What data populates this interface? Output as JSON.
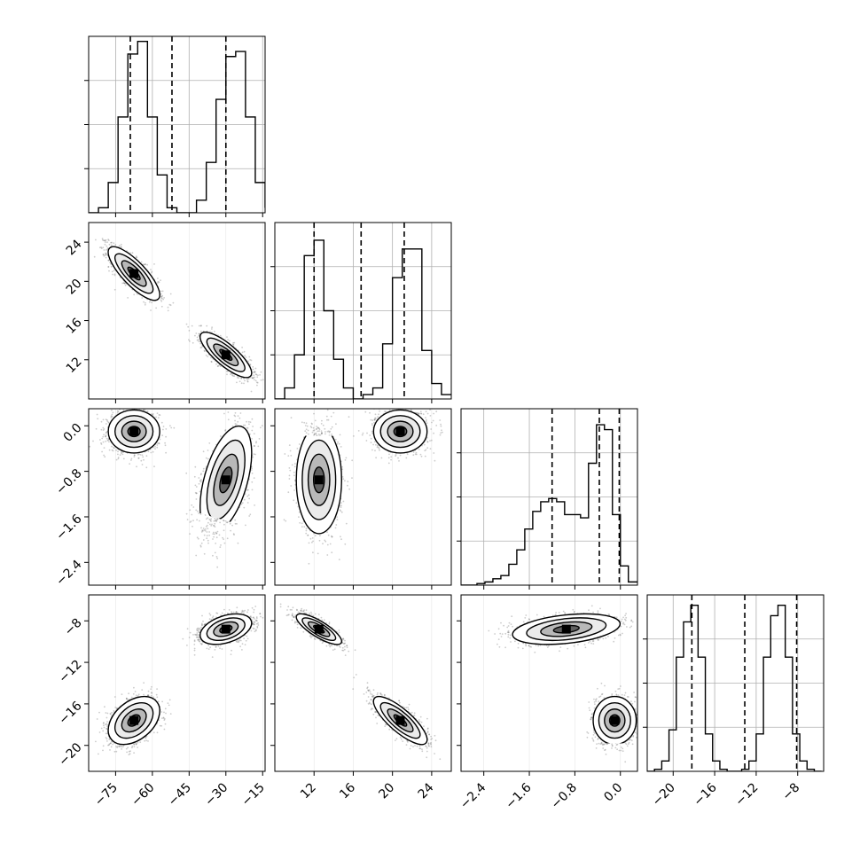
{
  "chart_data": {
    "type": "scatter",
    "layout": "corner-plot",
    "grid": true,
    "parameters": [
      {
        "range": [
          -86,
          -14
        ],
        "ticks": [
          -75,
          -60,
          -45,
          -30,
          -15
        ],
        "tick_labels": [
          "−75",
          "−60",
          "−45",
          "−30",
          "−15"
        ],
        "quantiles": [
          -69,
          -52,
          -30
        ],
        "histogram": {
          "bin_edges": [
            -86,
            -82,
            -78,
            -74,
            -70,
            -66,
            -62,
            -58,
            -54,
            -50,
            -46,
            -42,
            -38,
            -34,
            -30,
            -26,
            -22,
            -18,
            -14
          ],
          "counts": [
            0.0,
            0.02,
            0.12,
            0.38,
            0.63,
            0.68,
            0.38,
            0.15,
            0.02,
            0.0,
            0.0,
            0.05,
            0.2,
            0.45,
            0.62,
            0.64,
            0.38,
            0.12,
            0.02
          ],
          "counts_max": 0.7
        }
      },
      {
        "range": [
          8,
          26
        ],
        "ticks": [
          12,
          16,
          20,
          24
        ],
        "tick_labels": [
          "12",
          "16",
          "20",
          "24"
        ],
        "quantiles": [
          12,
          16.8,
          21.2
        ],
        "histogram": {
          "bin_edges": [
            8,
            9,
            10,
            11,
            12,
            13,
            14,
            15,
            16,
            17,
            18,
            19,
            20,
            21,
            22,
            23,
            24,
            25,
            26
          ],
          "counts": [
            0.0,
            0.05,
            0.2,
            0.65,
            0.72,
            0.4,
            0.18,
            0.05,
            0.0,
            0.02,
            0.05,
            0.25,
            0.55,
            0.68,
            0.68,
            0.22,
            0.07,
            0.02
          ],
          "counts_max": 0.8
        }
      },
      {
        "range": [
          -2.8,
          0.3
        ],
        "ticks": [
          -2.4,
          -1.6,
          -0.8,
          0.0
        ],
        "tick_labels": [
          "−2.4",
          "−1.6",
          "−0.8",
          "0.0"
        ],
        "quantiles": [
          -1.2,
          -0.37,
          -0.02
        ],
        "histogram": {
          "bin_edges": [
            -2.8,
            -2.66,
            -2.52,
            -2.38,
            -2.24,
            -2.1,
            -1.96,
            -1.82,
            -1.68,
            -1.54,
            -1.4,
            -1.26,
            -1.12,
            -0.98,
            -0.84,
            -0.7,
            -0.56,
            -0.42,
            -0.28,
            -0.14,
            0.0,
            0.14,
            0.3
          ],
          "counts": [
            0.0,
            0.0,
            0.01,
            0.02,
            0.04,
            0.06,
            0.13,
            0.22,
            0.35,
            0.46,
            0.52,
            0.54,
            0.52,
            0.44,
            0.44,
            0.42,
            0.76,
            1.0,
            0.97,
            0.44,
            0.12,
            0.02
          ],
          "counts_max": 1.1
        }
      },
      {
        "range": [
          -22.5,
          -5.5
        ],
        "ticks": [
          -20,
          -16,
          -12,
          -8
        ],
        "tick_labels": [
          "−20",
          "−16",
          "−12",
          "−8"
        ],
        "quantiles": [
          -18.2,
          -13.1,
          -8.1
        ],
        "histogram": {
          "bin_edges": [
            -22.5,
            -21.8,
            -21.1,
            -20.4,
            -19.7,
            -19.0,
            -18.3,
            -17.6,
            -16.9,
            -16.2,
            -15.5,
            -14.8,
            -14.1,
            -13.4,
            -12.7,
            -12.0,
            -11.3,
            -10.6,
            -9.9,
            -9.2,
            -8.5,
            -7.8,
            -7.1,
            -6.4,
            -5.7
          ],
          "counts": [
            0.0,
            0.01,
            0.05,
            0.2,
            0.55,
            0.72,
            0.8,
            0.55,
            0.18,
            0.05,
            0.01,
            0.0,
            0.0,
            0.01,
            0.05,
            0.18,
            0.55,
            0.75,
            0.8,
            0.55,
            0.18,
            0.05,
            0.01,
            0.0
          ],
          "counts_max": 0.85
        }
      }
    ],
    "modes": [
      {
        "center": [
          -67.5,
          20.8,
          -0.1,
          -17.6
        ],
        "sigma": [
          5,
          1.3,
          0.18,
          1.1
        ]
      },
      {
        "center": [
          -30,
          12.5,
          -0.95,
          -8.8
        ],
        "sigma": [
          5,
          1.1,
          0.45,
          0.7
        ]
      }
    ],
    "correlations": {
      "0-1": [
        -0.8,
        -0.8
      ],
      "0-2": [
        0.0,
        0.5
      ],
      "0-3": [
        0.4,
        0.4
      ],
      "1-2": [
        0.0,
        0.0
      ],
      "1-3": [
        -0.8,
        -0.8
      ],
      "2-3": [
        0.0,
        0.35
      ]
    }
  }
}
